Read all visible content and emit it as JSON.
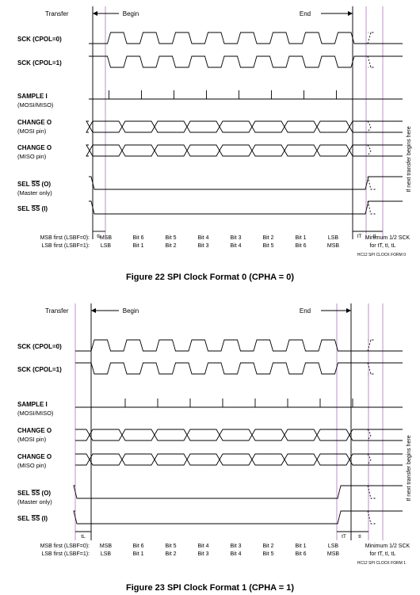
{
  "colors": {
    "line": "#000000",
    "marker": "#b070c0"
  },
  "figures": [
    {
      "caption": "Figure 22 SPI Clock Format 0 (CPHA = 0)",
      "phase": 0,
      "form_id": "HC12 SPI CLOCK FORM 0",
      "labels": {
        "transfer": "Transfer",
        "begin": "Begin",
        "end": "End",
        "sck0": "SCK (CPOL=0)",
        "sck1": "SCK (CPOL=1)",
        "sample": "SAMPLE I",
        "sample_sub": "(MOSI/MISO)",
        "change_mosi": "CHANGE O",
        "change_mosi_sub": "(MOSI pin)",
        "change_miso": "CHANGE O",
        "change_miso_sub": "(MISO pin)",
        "sel_o_pre": "SEL",
        "sel_o_bar": "SS",
        "sel_o_post": "(O)",
        "sel_o_sub": "(Master only)",
        "sel_i_pre": "SEL",
        "sel_i_bar": "SS",
        "sel_i_post": "(I)",
        "next_transfer": "If next transfer begins here",
        "tL": "tL",
        "tT": "tT",
        "tI": "tI",
        "msb_first": "MSB first (LSBF=0):",
        "lsb_first": "LSB first (LSBF=1):",
        "minimum": "Minimum  1/2 SCK",
        "for_times": "for tT, tI, tL"
      },
      "bits_msb": [
        "MSB",
        "Bit 6",
        "Bit 5",
        "Bit 4",
        "Bit 3",
        "Bit 2",
        "Bit 1",
        "LSB"
      ],
      "bits_lsb": [
        "LSB",
        "Bit 1",
        "Bit 2",
        "Bit 3",
        "Bit 4",
        "Bit 5",
        "Bit 6",
        "MSB"
      ]
    },
    {
      "caption": "Figure 23 SPI Clock Format 1 (CPHA = 1)",
      "phase": 1,
      "form_id": "HC12 SPI CLOCK FORM 1",
      "labels": {
        "transfer": "Transfer",
        "begin": "Begin",
        "end": "End",
        "sck0": "SCK (CPOL=0)",
        "sck1": "SCK (CPOL=1)",
        "sample": "SAMPLE I",
        "sample_sub": "(MOSI/MISO)",
        "change_mosi": "CHANGE O",
        "change_mosi_sub": "(MOSI pin)",
        "change_miso": "CHANGE O",
        "change_miso_sub": "(MISO pin)",
        "sel_o_pre": "SEL",
        "sel_o_bar": "SS",
        "sel_o_post": "(O)",
        "sel_o_sub": "(Master only)",
        "sel_i_pre": "SEL",
        "sel_i_bar": "SS",
        "sel_i_post": "(I)",
        "next_transfer": "If next transfer begins here",
        "tL": "tL",
        "tT": "tT",
        "tI": "tI",
        "msb_first": "MSB first (LSBF=0):",
        "lsb_first": "LSB first (LSBF=1):",
        "minimum": "Minimum  1/2 SCK",
        "for_times": "for tT, tI, tL"
      },
      "bits_msb": [
        "MSB",
        "Bit 6",
        "Bit 5",
        "Bit 4",
        "Bit 3",
        "Bit 2",
        "Bit 1",
        "LSB"
      ],
      "bits_lsb": [
        "LSB",
        "Bit 1",
        "Bit 2",
        "Bit 3",
        "Bit 4",
        "Bit 5",
        "Bit 6",
        "MSB"
      ]
    }
  ]
}
